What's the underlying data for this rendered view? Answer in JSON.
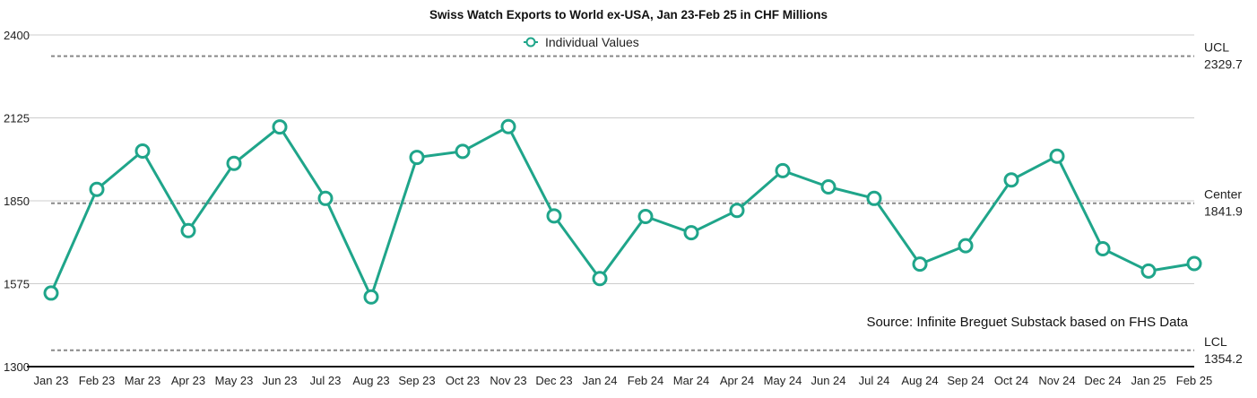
{
  "chart_data": {
    "type": "line",
    "title": "Swiss Watch Exports to World ex-USA, Jan 23-Feb 25 in CHF Millions",
    "categories": [
      "Jan 23",
      "Feb 23",
      "Mar 23",
      "Apr 23",
      "May 23",
      "Jun 23",
      "Jul 23",
      "Aug 23",
      "Sep 23",
      "Oct 23",
      "Nov 23",
      "Dec 23",
      "Jan 24",
      "Feb 24",
      "Mar 24",
      "Apr 24",
      "May 24",
      "Jun 24",
      "Jul 24",
      "Aug 24",
      "Sep 24",
      "Oct 24",
      "Nov 24",
      "Dec 24",
      "Jan 25",
      "Feb 25"
    ],
    "series": [
      {
        "name": "Individual Values",
        "values": [
          1544,
          1888,
          2015,
          1751,
          1974,
          2095,
          1858,
          1531,
          1994,
          2014,
          2096,
          1800,
          1592,
          1798,
          1744,
          1818,
          1950,
          1896,
          1858,
          1640,
          1701,
          1919,
          1998,
          1691,
          1617,
          1642
        ],
        "color": "#1fa58a"
      }
    ],
    "yticks": [
      1300,
      1575,
      1850,
      2125,
      2400
    ],
    "ylim": [
      1300,
      2400
    ],
    "control_lines": [
      {
        "name": "UCL",
        "value": 2329.7,
        "value_label": "2329.7"
      },
      {
        "name": "Center",
        "value": 1841.9,
        "value_label": "1841.9"
      },
      {
        "name": "LCL",
        "value": 1354.2,
        "value_label": "1354.2"
      }
    ],
    "legend": {
      "label": "Individual Values",
      "position": "top-center"
    },
    "source": "Source: Infinite Breguet Substack based on FHS Data",
    "grid": true
  }
}
